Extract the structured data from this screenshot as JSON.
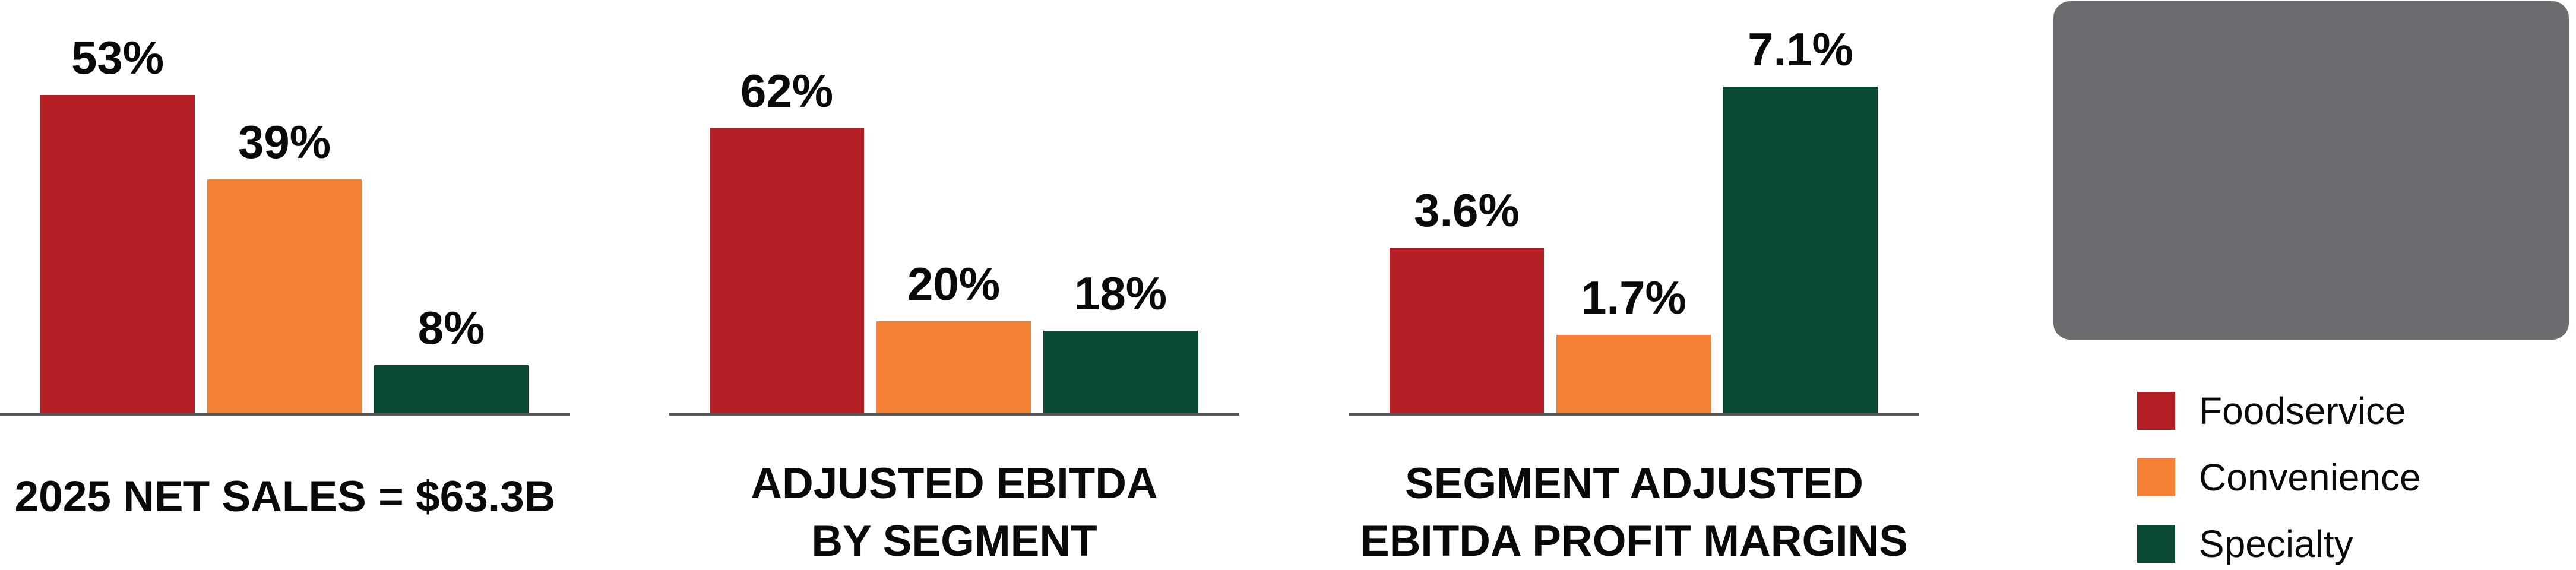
{
  "colors": {
    "foodservice": "#b51f26",
    "convenience": "#f48133",
    "specialty": "#0a4a35",
    "axis": "#58595b",
    "placeholder_box": "#6b6c6f",
    "text": "#0a0a0a",
    "background": "#ffffff"
  },
  "chart_data": [
    {
      "type": "bar",
      "title": "2025 NET SALES = $63.3B",
      "title_lines": [
        "2025 NET SALES = $63.3B"
      ],
      "categories": [
        "Foodservice",
        "Convenience",
        "Specialty"
      ],
      "values": [
        53,
        39,
        8
      ],
      "labels": [
        "53%",
        "39%",
        "8%"
      ],
      "unit": "%",
      "xlabel": "",
      "ylabel": "",
      "grid": false,
      "legend_position": "right-panel-shared"
    },
    {
      "type": "bar",
      "title": "ADJUSTED EBITDA BY SEGMENT",
      "title_lines": [
        "ADJUSTED EBITDA",
        "BY SEGMENT"
      ],
      "categories": [
        "Foodservice",
        "Convenience",
        "Specialty"
      ],
      "values": [
        62,
        20,
        18
      ],
      "labels": [
        "62%",
        "20%",
        "18%"
      ],
      "unit": "%",
      "xlabel": "",
      "ylabel": "",
      "grid": false,
      "legend_position": "right-panel-shared"
    },
    {
      "type": "bar",
      "title": "SEGMENT ADJUSTED EBITDA PROFIT MARGINS",
      "title_lines": [
        "SEGMENT ADJUSTED",
        "EBITDA PROFIT MARGINS"
      ],
      "categories": [
        "Foodservice",
        "Convenience",
        "Specialty"
      ],
      "values": [
        3.6,
        1.7,
        7.1
      ],
      "labels": [
        "3.6%",
        "1.7%",
        "7.1%"
      ],
      "unit": "%",
      "xlabel": "",
      "ylabel": "",
      "grid": false,
      "legend_position": "right-panel-shared"
    }
  ],
  "legend": {
    "items": [
      {
        "label": "Foodservice",
        "color_key": "foodservice"
      },
      {
        "label": "Convenience",
        "color_key": "convenience"
      },
      {
        "label": "Specialty",
        "color_key": "specialty"
      }
    ]
  },
  "placeholder_box": {
    "present": true,
    "text": ""
  }
}
